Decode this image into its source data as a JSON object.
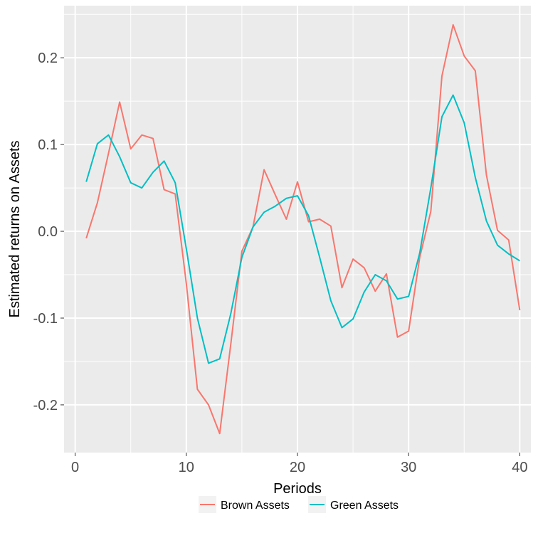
{
  "chart_data": {
    "type": "line",
    "xlabel": "Periods",
    "ylabel": "Estimated returns on Assets",
    "xlim": [
      -1,
      41
    ],
    "ylim": [
      -0.255,
      0.26
    ],
    "x_ticks": [
      0,
      10,
      20,
      30,
      40
    ],
    "x_tick_labels": [
      "0",
      "10",
      "20",
      "30",
      "40"
    ],
    "y_ticks": [
      -0.2,
      -0.1,
      0.0,
      0.1,
      0.2
    ],
    "y_tick_labels": [
      "-0.2",
      "-0.1",
      "0.0",
      "0.1",
      "0.2"
    ],
    "grid": true,
    "legend_position": "bottom",
    "x": [
      1,
      2,
      3,
      4,
      5,
      6,
      7,
      8,
      9,
      10,
      11,
      12,
      13,
      14,
      15,
      16,
      17,
      18,
      19,
      20,
      21,
      22,
      23,
      24,
      25,
      26,
      27,
      28,
      29,
      30,
      31,
      32,
      33,
      34,
      35,
      36,
      37,
      38,
      39,
      40
    ],
    "series": [
      {
        "name": "Brown Assets",
        "color": "#F8766D",
        "values": [
          -0.008,
          0.033,
          0.09,
          0.149,
          0.095,
          0.111,
          0.107,
          0.048,
          0.043,
          -0.06,
          -0.182,
          -0.2,
          -0.233,
          -0.13,
          -0.023,
          0.005,
          0.071,
          0.042,
          0.014,
          0.057,
          0.011,
          0.014,
          0.006,
          -0.065,
          -0.032,
          -0.042,
          -0.069,
          -0.049,
          -0.122,
          -0.115,
          -0.03,
          0.023,
          0.179,
          0.238,
          0.202,
          0.185,
          0.065,
          0.001,
          -0.01,
          -0.091
        ]
      },
      {
        "name": "Green Assets",
        "color": "#00BFC4",
        "values": [
          0.057,
          0.101,
          0.111,
          0.086,
          0.056,
          0.05,
          0.068,
          0.081,
          0.056,
          -0.02,
          -0.1,
          -0.152,
          -0.147,
          -0.095,
          -0.03,
          0.005,
          0.022,
          0.029,
          0.038,
          0.041,
          0.018,
          -0.03,
          -0.08,
          -0.111,
          -0.101,
          -0.07,
          -0.05,
          -0.057,
          -0.078,
          -0.075,
          -0.025,
          0.05,
          0.132,
          0.157,
          0.125,
          0.062,
          0.012,
          -0.016,
          -0.026,
          -0.034
        ]
      }
    ]
  }
}
